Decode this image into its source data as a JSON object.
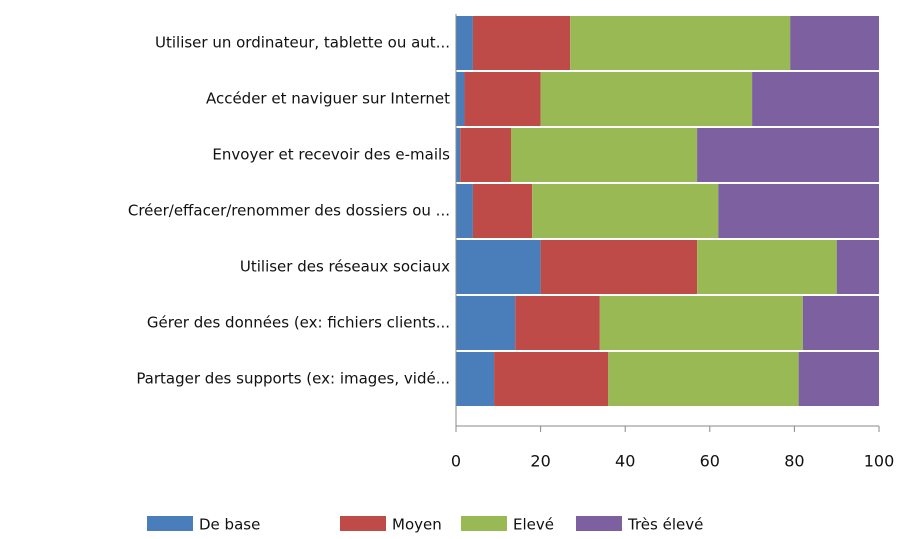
{
  "chart_data": {
    "type": "stacked-bar-horizontal",
    "categories": [
      "Utiliser un ordinateur, tablette ou aut...",
      "Accéder et naviguer sur Internet",
      "Envoyer et recevoir des e-mails",
      "Créer/effacer/renommer des dossiers ou ...",
      "Utiliser des réseaux sociaux",
      "Gérer des données (ex: fichiers clients...",
      "Partager des supports (ex: images, vidé..."
    ],
    "series": [
      {
        "name": "De base",
        "color": "#4a7ebb",
        "values": [
          4,
          2,
          1,
          4,
          20,
          14,
          9
        ]
      },
      {
        "name": "Moyen",
        "color": "#be4b48",
        "values": [
          23,
          18,
          12,
          14,
          37,
          20,
          27
        ]
      },
      {
        "name": "Elevé",
        "color": "#98b954",
        "values": [
          52,
          50,
          44,
          44,
          33,
          48,
          45
        ]
      },
      {
        "name": "Très élevé",
        "color": "#7d60a0",
        "values": [
          21,
          30,
          43,
          38,
          10,
          18,
          19
        ]
      }
    ],
    "xlim": [
      0,
      100
    ],
    "xticks": [
      0,
      20,
      40,
      60,
      80,
      100
    ],
    "legend": "bottom"
  }
}
